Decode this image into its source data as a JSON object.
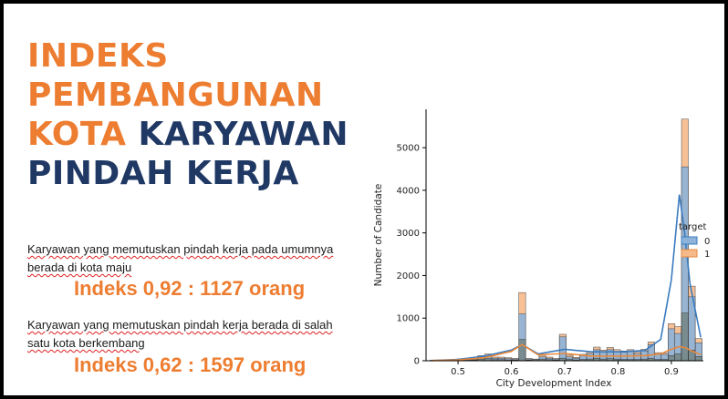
{
  "slide": {
    "title_lines": [
      {
        "parts": [
          {
            "text": "INDEKS",
            "color": "orange"
          }
        ]
      },
      {
        "parts": [
          {
            "text": "PEMBANGUNAN",
            "color": "orange"
          }
        ]
      },
      {
        "parts": [
          {
            "text": "KOTA ",
            "color": "orange"
          },
          {
            "text": "KARYAWAN",
            "color": "navy"
          }
        ]
      },
      {
        "parts": [
          {
            "text": "PINDAH KERJA",
            "color": "navy"
          }
        ]
      }
    ],
    "desc1_line1": "Karyawan yang memutuskan pindah kerja pada umumnya",
    "desc1_line2": "berada di kota maju",
    "stat1": "Indeks 0,92 : 1127 orang",
    "desc2_line1": "Karyawan yang memutuskan pindah kerja berada di salah",
    "desc2_line2": "satu kota berkembang",
    "stat2": "Indeks 0,62 : 1597 orang"
  },
  "colors": {
    "orange": "#ED7D31",
    "navy": "#1F3864",
    "series0_fill": "#8DB3D9",
    "series0_line": "#3B7BBF",
    "series1_fill": "#F6B98A",
    "series1_line": "#E8893C"
  },
  "chart_data": {
    "type": "bar",
    "subtype": "stacked histogram with kde",
    "title": "",
    "xlabel": "City Development Index",
    "ylabel": "Number of Candidate",
    "xlim": [
      0.44,
      0.96
    ],
    "ylim": [
      0,
      5900
    ],
    "xticks": [
      0.5,
      0.6,
      0.7,
      0.8,
      0.9
    ],
    "xtick_labels": [
      "0.5",
      "0.6",
      "0.7",
      "0.8",
      "0.9"
    ],
    "yticks": [
      0,
      1000,
      2000,
      3000,
      4000,
      5000
    ],
    "ytick_labels": [
      "0",
      "1000",
      "2000",
      "3000",
      "4000",
      "5000"
    ],
    "legend": {
      "title": "target",
      "labels": [
        "0",
        "1"
      ],
      "position": "right"
    },
    "bin_width": 0.0127,
    "bins": [
      {
        "x": 0.448,
        "v0": 10,
        "v1": 5
      },
      {
        "x": 0.461,
        "v0": 5,
        "v1": 3
      },
      {
        "x": 0.474,
        "v0": 5,
        "v1": 3
      },
      {
        "x": 0.486,
        "v0": 20,
        "v1": 10
      },
      {
        "x": 0.499,
        "v0": 30,
        "v1": 15
      },
      {
        "x": 0.512,
        "v0": 20,
        "v1": 10
      },
      {
        "x": 0.524,
        "v0": 30,
        "v1": 15
      },
      {
        "x": 0.537,
        "v0": 80,
        "v1": 40
      },
      {
        "x": 0.55,
        "v0": 110,
        "v1": 50
      },
      {
        "x": 0.563,
        "v0": 60,
        "v1": 25
      },
      {
        "x": 0.575,
        "v0": 60,
        "v1": 25
      },
      {
        "x": 0.588,
        "v0": 50,
        "v1": 20
      },
      {
        "x": 0.601,
        "v0": 40,
        "v1": 15
      },
      {
        "x": 0.614,
        "v0": 1100,
        "v1": 500
      },
      {
        "x": 0.626,
        "v0": 40,
        "v1": 15
      },
      {
        "x": 0.639,
        "v0": 30,
        "v1": 10
      },
      {
        "x": 0.652,
        "v0": 90,
        "v1": 40
      },
      {
        "x": 0.665,
        "v0": 60,
        "v1": 25
      },
      {
        "x": 0.677,
        "v0": 40,
        "v1": 15
      },
      {
        "x": 0.69,
        "v0": 560,
        "v1": 60
      },
      {
        "x": 0.703,
        "v0": 90,
        "v1": 40
      },
      {
        "x": 0.715,
        "v0": 60,
        "v1": 20
      },
      {
        "x": 0.728,
        "v0": 120,
        "v1": 30
      },
      {
        "x": 0.741,
        "v0": 170,
        "v1": 40
      },
      {
        "x": 0.754,
        "v0": 260,
        "v1": 60
      },
      {
        "x": 0.766,
        "v0": 210,
        "v1": 40
      },
      {
        "x": 0.779,
        "v0": 260,
        "v1": 50
      },
      {
        "x": 0.792,
        "v0": 220,
        "v1": 40
      },
      {
        "x": 0.805,
        "v0": 200,
        "v1": 30
      },
      {
        "x": 0.817,
        "v0": 230,
        "v1": 30
      },
      {
        "x": 0.83,
        "v0": 170,
        "v1": 30
      },
      {
        "x": 0.843,
        "v0": 230,
        "v1": 40
      },
      {
        "x": 0.856,
        "v0": 380,
        "v1": 60
      },
      {
        "x": 0.868,
        "v0": 160,
        "v1": 30
      },
      {
        "x": 0.881,
        "v0": 150,
        "v1": 30
      },
      {
        "x": 0.894,
        "v0": 750,
        "v1": 120
      },
      {
        "x": 0.906,
        "v0": 640,
        "v1": 160
      },
      {
        "x": 0.919,
        "v0": 4550,
        "v1": 1120
      },
      {
        "x": 0.932,
        "v0": 1500,
        "v1": 250
      },
      {
        "x": 0.945,
        "v0": 420,
        "v1": 100
      }
    ],
    "kde": {
      "x": [
        0.45,
        0.5,
        0.55,
        0.6,
        0.62,
        0.65,
        0.7,
        0.75,
        0.8,
        0.85,
        0.88,
        0.9,
        0.915,
        0.925,
        0.935,
        0.955
      ],
      "series0": [
        5,
        30,
        110,
        250,
        380,
        160,
        270,
        210,
        210,
        240,
        500,
        1900,
        3900,
        3000,
        1800,
        550
      ],
      "series1": [
        5,
        20,
        70,
        220,
        380,
        140,
        170,
        110,
        110,
        120,
        160,
        270,
        330,
        310,
        250,
        140
      ]
    }
  }
}
